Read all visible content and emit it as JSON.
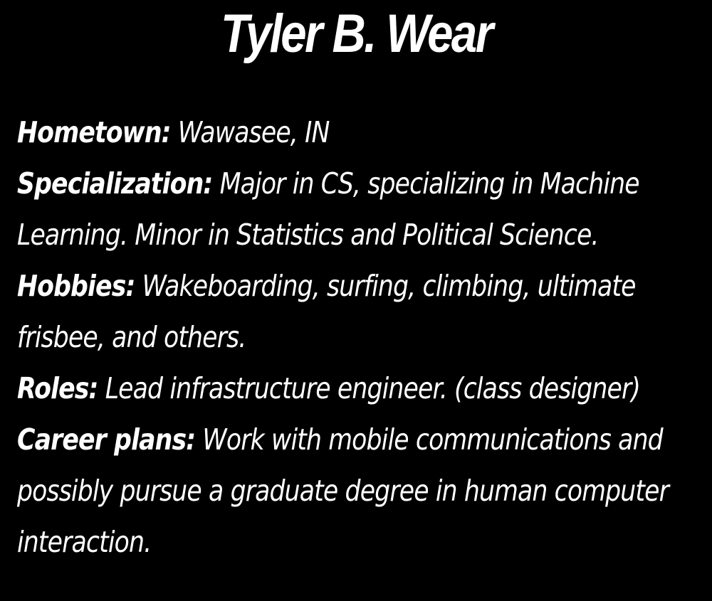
{
  "title": "Tyler B. Wear",
  "fields": [
    {
      "label": "Hometown:",
      "value": "Wawasee, IN"
    },
    {
      "label": "Specialization:",
      "value": "Major in CS, specializing in Machine Learning. Minor in Statistics and Political Science."
    },
    {
      "label": "Hobbies:",
      "value": "Wakeboarding, surfing, climbing, ultimate frisbee, and others."
    },
    {
      "label": "Roles:",
      "value": "Lead infrastructure engineer. (class designer)"
    },
    {
      "label": "Career plans:",
      "value": "Work with mobile communications and possibly pursue a graduate degree in human computer interaction."
    }
  ],
  "colors": {
    "background": "#000000",
    "text": "#ffffff"
  }
}
